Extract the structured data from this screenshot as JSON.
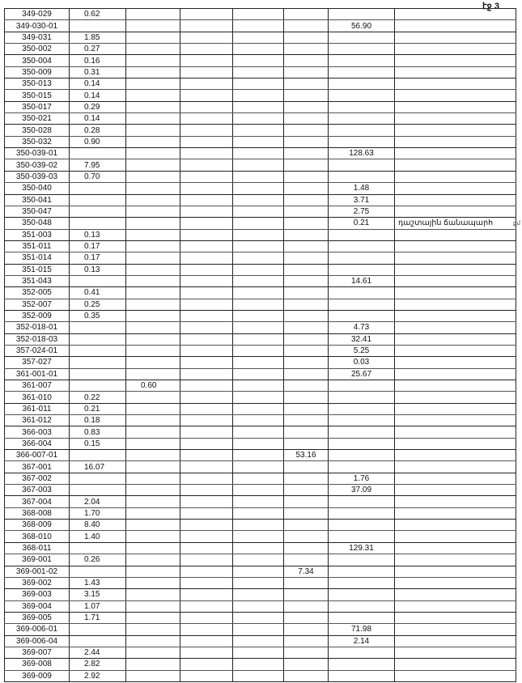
{
  "page_label": "էջ 3",
  "margin_mark": "քմ",
  "table": {
    "rows": [
      [
        "349-029",
        "0.62",
        "",
        "",
        "",
        "",
        "",
        ""
      ],
      [
        "349-030-01",
        "",
        "",
        "",
        "",
        "",
        "56.90",
        ""
      ],
      [
        "349-031",
        "1.85",
        "",
        "",
        "",
        "",
        "",
        ""
      ],
      [
        "350-002",
        "0.27",
        "",
        "",
        "",
        "",
        "",
        ""
      ],
      [
        "350-004",
        "0.16",
        "",
        "",
        "",
        "",
        "",
        ""
      ],
      [
        "350-009",
        "0.31",
        "",
        "",
        "",
        "",
        "",
        ""
      ],
      [
        "350-013",
        "0.14",
        "",
        "",
        "",
        "",
        "",
        ""
      ],
      [
        "350-015",
        "0.14",
        "",
        "",
        "",
        "",
        "",
        ""
      ],
      [
        "350-017",
        "0.29",
        "",
        "",
        "",
        "",
        "",
        ""
      ],
      [
        "350-021",
        "0.14",
        "",
        "",
        "",
        "",
        "",
        ""
      ],
      [
        "350-028",
        "0.28",
        "",
        "",
        "",
        "",
        "",
        ""
      ],
      [
        "350-032",
        "0.90",
        "",
        "",
        "",
        "",
        "",
        ""
      ],
      [
        "350-039-01",
        "",
        "",
        "",
        "",
        "",
        "128.63",
        ""
      ],
      [
        "350-039-02",
        "7.95",
        "",
        "",
        "",
        "",
        "",
        ""
      ],
      [
        "350-039-03",
        "0.70",
        "",
        "",
        "",
        "",
        "",
        ""
      ],
      [
        "350-040",
        "",
        "",
        "",
        "",
        "",
        "1.48",
        ""
      ],
      [
        "350-041",
        "",
        "",
        "",
        "",
        "",
        "3.71",
        ""
      ],
      [
        "350-047",
        "",
        "",
        "",
        "",
        "",
        "2.75",
        ""
      ],
      [
        "350-048",
        "",
        "",
        "",
        "",
        "",
        "0.21",
        "դաշտային ճանապարհ"
      ],
      [
        "351-003",
        "0.13",
        "",
        "",
        "",
        "",
        "",
        ""
      ],
      [
        "351-011",
        "0.17",
        "",
        "",
        "",
        "",
        "",
        ""
      ],
      [
        "351-014",
        "0.17",
        "",
        "",
        "",
        "",
        "",
        ""
      ],
      [
        "351-015",
        "0.13",
        "",
        "",
        "",
        "",
        "",
        ""
      ],
      [
        "351-043",
        "",
        "",
        "",
        "",
        "",
        "14.61",
        ""
      ],
      [
        "352-005",
        "0.41",
        "",
        "",
        "",
        "",
        "",
        ""
      ],
      [
        "352-007",
        "0.25",
        "",
        "",
        "",
        "",
        "",
        ""
      ],
      [
        "352-009",
        "0.35",
        "",
        "",
        "",
        "",
        "",
        ""
      ],
      [
        "352-018-01",
        "",
        "",
        "",
        "",
        "",
        "4.73",
        ""
      ],
      [
        "352-018-03",
        "",
        "",
        "",
        "",
        "",
        "32.41",
        ""
      ],
      [
        "357-024-01",
        "",
        "",
        "",
        "",
        "",
        "5.25",
        ""
      ],
      [
        "357-027",
        "",
        "",
        "",
        "",
        "",
        "0.03",
        ""
      ],
      [
        "361-001-01",
        "",
        "",
        "",
        "",
        "",
        "25.67",
        ""
      ],
      [
        "361-007",
        "",
        "0.60",
        "",
        "",
        "",
        "",
        ""
      ],
      [
        "361-010",
        "0.22",
        "",
        "",
        "",
        "",
        "",
        ""
      ],
      [
        "361-011",
        "0.21",
        "",
        "",
        "",
        "",
        "",
        ""
      ],
      [
        "361-012",
        "0.18",
        "",
        "",
        "",
        "",
        "",
        ""
      ],
      [
        "366-003",
        "0.83",
        "",
        "",
        "",
        "",
        "",
        ""
      ],
      [
        "366-004",
        "0.15",
        "",
        "",
        "",
        "",
        "",
        ""
      ],
      [
        "366-007-01",
        "",
        "",
        "",
        "",
        "53.16",
        "",
        ""
      ],
      [
        "367-001",
        "16.07",
        "",
        "",
        "",
        "",
        "",
        ""
      ],
      [
        "367-002",
        "",
        "",
        "",
        "",
        "",
        "1.76",
        ""
      ],
      [
        "367-003",
        "",
        "",
        "",
        "",
        "",
        "37.09",
        ""
      ],
      [
        "367-004",
        "2.04",
        "",
        "",
        "",
        "",
        "",
        ""
      ],
      [
        "368-008",
        "1.70",
        "",
        "",
        "",
        "",
        "",
        ""
      ],
      [
        "368-009",
        "8.40",
        "",
        "",
        "",
        "",
        "",
        ""
      ],
      [
        "368-010",
        "1.40",
        "",
        "",
        "",
        "",
        "",
        ""
      ],
      [
        "368-011",
        "",
        "",
        "",
        "",
        "",
        "129.31",
        ""
      ],
      [
        "369-001",
        "0.26",
        "",
        "",
        "",
        "",
        "",
        ""
      ],
      [
        "369-001-02",
        "",
        "",
        "",
        "",
        "7.34",
        "",
        ""
      ],
      [
        "369-002",
        "1.43",
        "",
        "",
        "",
        "",
        "",
        ""
      ],
      [
        "369-003",
        "3.15",
        "",
        "",
        "",
        "",
        "",
        ""
      ],
      [
        "369-004",
        "1.07",
        "",
        "",
        "",
        "",
        "",
        ""
      ],
      [
        "369-005",
        "1.71",
        "",
        "",
        "",
        "",
        "",
        ""
      ],
      [
        "369-006-01",
        "",
        "",
        "",
        "",
        "",
        "71.98",
        ""
      ],
      [
        "369-006-04",
        "",
        "",
        "",
        "",
        "",
        "2.14",
        ""
      ],
      [
        "369-007",
        "2.44",
        "",
        "",
        "",
        "",
        "",
        ""
      ],
      [
        "369-008",
        "2.82",
        "",
        "",
        "",
        "",
        "",
        ""
      ],
      [
        "369-009",
        "2.92",
        "",
        "",
        "",
        "",
        "",
        ""
      ]
    ]
  }
}
